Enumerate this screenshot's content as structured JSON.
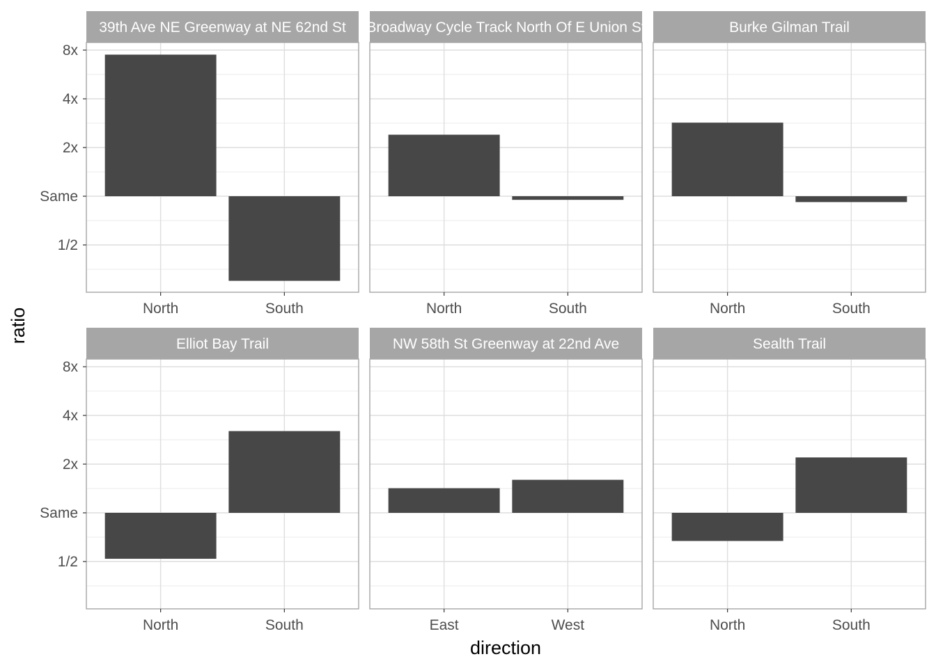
{
  "chart_data": {
    "type": "bar",
    "xlabel": "direction",
    "ylabel": "ratio",
    "y_scale": "log2",
    "ylim": [
      0.28,
      9.0
    ],
    "y_ticks": [
      {
        "value": 0.5,
        "label": "1/2"
      },
      {
        "value": 1,
        "label": "Same"
      },
      {
        "value": 2,
        "label": "2x"
      },
      {
        "value": 4,
        "label": "4x"
      },
      {
        "value": 8,
        "label": "8x"
      }
    ],
    "grid": true,
    "bar_color": "#474747",
    "strip_color": "#a6a6a6",
    "panels": [
      {
        "title": "39th Ave NE Greenway at NE 62nd St",
        "categories": [
          "North",
          "South"
        ],
        "values": [
          7.5,
          0.3
        ]
      },
      {
        "title": "Broadway Cycle Track North Of E Union St",
        "categories": [
          "North",
          "South"
        ],
        "values": [
          2.4,
          0.95
        ]
      },
      {
        "title": "Burke Gilman Trail",
        "categories": [
          "North",
          "South"
        ],
        "values": [
          2.85,
          0.92
        ]
      },
      {
        "title": "Elliot Bay Trail",
        "categories": [
          "North",
          "South"
        ],
        "values": [
          0.52,
          3.2
        ]
      },
      {
        "title": "NW 58th St Greenway at 22nd Ave",
        "categories": [
          "East",
          "West"
        ],
        "values": [
          1.42,
          1.6
        ]
      },
      {
        "title": "Sealth Trail",
        "categories": [
          "North",
          "South"
        ],
        "values": [
          0.67,
          2.2
        ]
      }
    ]
  }
}
